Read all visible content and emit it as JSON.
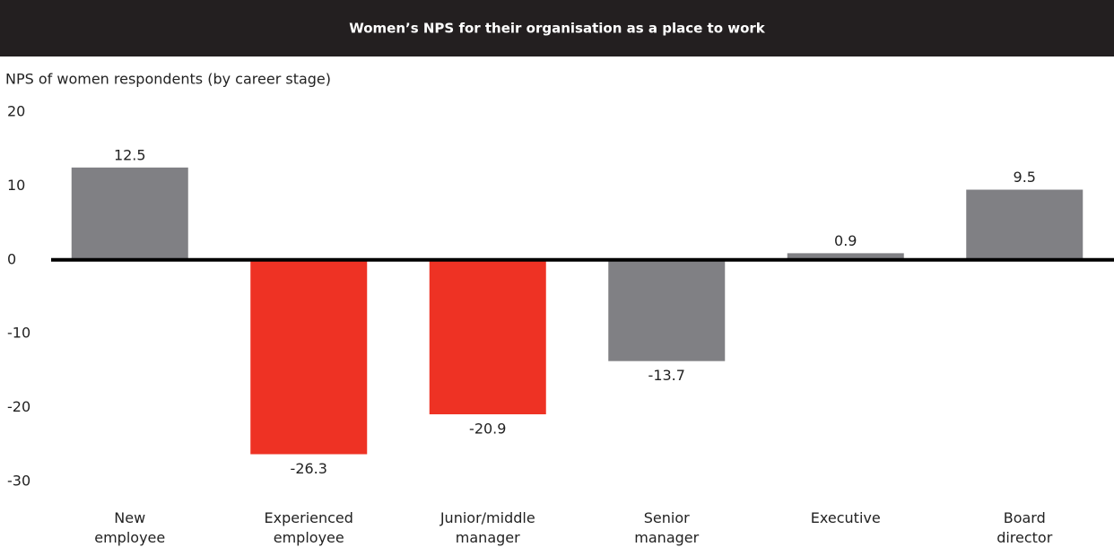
{
  "chart_data": {
    "type": "bar",
    "title": "Women’s NPS for their organisation as a place to work",
    "subtitle": "NPS of women respondents (by career stage)",
    "categories": [
      "New employee",
      "Experienced employee",
      "Junior/middle manager",
      "Senior manager",
      "Executive",
      "Board director"
    ],
    "values": [
      12.5,
      -26.3,
      -20.9,
      -13.7,
      0.9,
      9.5
    ],
    "colors": [
      "#808084",
      "#ee3224",
      "#ee3224",
      "#808084",
      "#808084",
      "#808084"
    ],
    "ylim": [
      -30,
      20
    ],
    "yticks": [
      20,
      10,
      0,
      -10,
      -20,
      -30
    ],
    "grid": false
  }
}
